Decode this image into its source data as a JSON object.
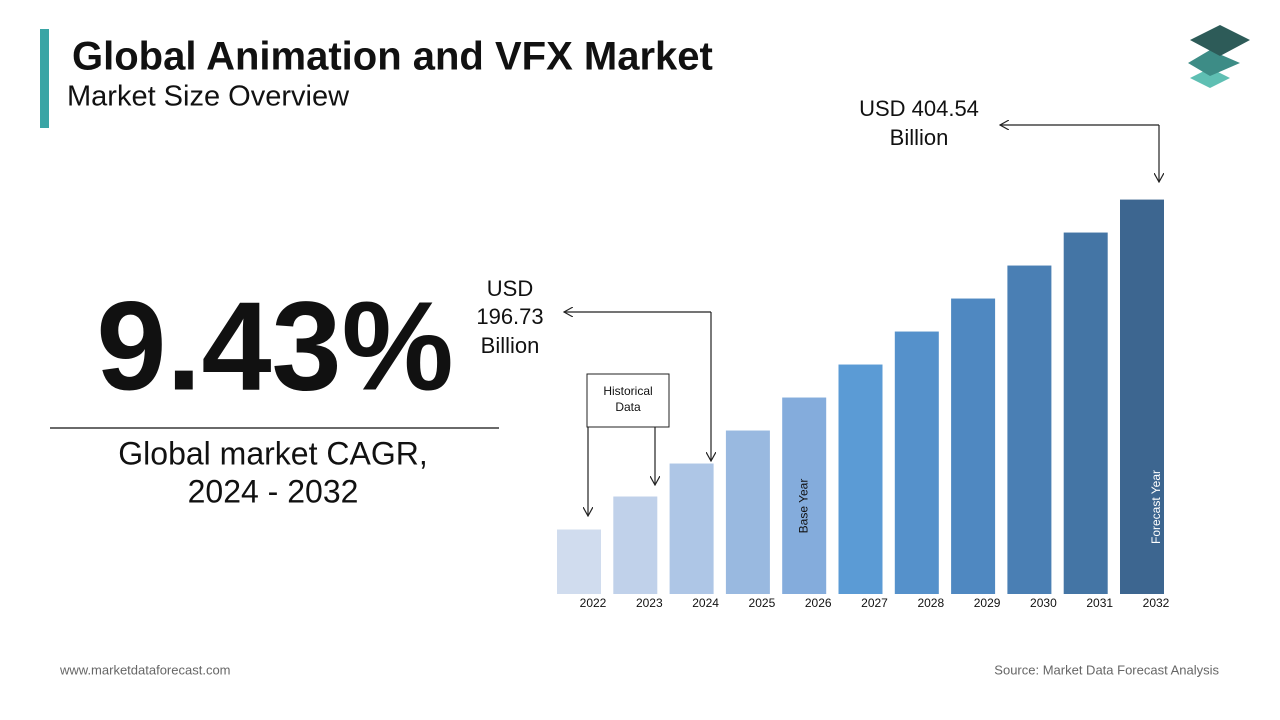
{
  "chart_data": {
    "type": "bar",
    "title": "Global Animation and VFX Market",
    "subtitle": "Market Size Overview",
    "categories": [
      "2022",
      "2023",
      "2024",
      "2025",
      "2026",
      "2027",
      "2028",
      "2029",
      "2030",
      "2031",
      "2032"
    ],
    "values": [
      144.77,
      170.75,
      196.73,
      222.71,
      248.69,
      274.67,
      300.65,
      326.63,
      352.61,
      378.59,
      404.54
    ],
    "colors": [
      "#d0dcee",
      "#c0d1ea",
      "#aec6e6",
      "#99b9e0",
      "#84acdc",
      "#5b9bd5",
      "#5591cb",
      "#4f88c1",
      "#4a7fb4",
      "#4475a5",
      "#3d6690"
    ],
    "ylim": [
      94,
      405
    ],
    "annotations": {
      "end_value": [
        "USD 404.54",
        "Billion"
      ],
      "base_value": [
        "USD",
        "196.73",
        "Billion"
      ],
      "historical": [
        "Historical",
        "Data"
      ],
      "base_year": "Base Year",
      "forecast_year": "Forecast Year"
    }
  },
  "cagr": {
    "value": "9.43%",
    "label": [
      "Global market CAGR,",
      "2024 - 2032"
    ]
  },
  "footer": {
    "website": "www.marketdataforecast.com",
    "source": "Source: Market Data Forecast Analysis"
  }
}
